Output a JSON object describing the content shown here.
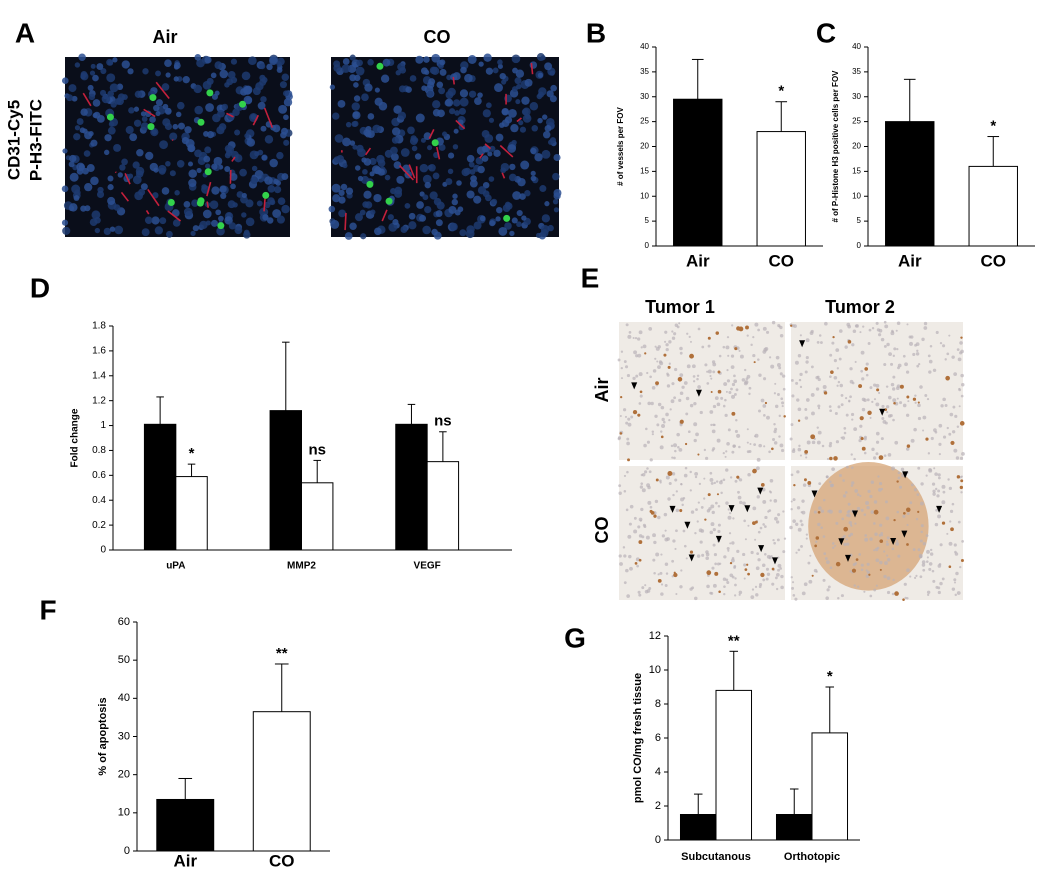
{
  "image_panels": [
    {
      "label": "A",
      "columns": [
        "Air",
        "CO"
      ],
      "rows": [
        "CD31-Cy5",
        "P-H3-FITC"
      ]
    },
    {
      "label": "E",
      "columns": [
        "Tumor 1",
        "Tumor 2"
      ],
      "rows": [
        "Air",
        "CO"
      ]
    }
  ],
  "chart_data": [
    {
      "type": "bar",
      "panel": "B",
      "ylabel": "# of vessels per FOV",
      "categories": [
        "Air",
        "CO"
      ],
      "values": [
        29.5,
        23
      ],
      "errors": [
        8,
        6
      ],
      "colors": [
        "#000000",
        "#ffffff"
      ],
      "annotations": [
        null,
        "*"
      ],
      "ylim": [
        0,
        40
      ],
      "yticks": [
        0,
        5,
        10,
        15,
        20,
        25,
        30,
        35,
        40
      ]
    },
    {
      "type": "bar",
      "panel": "C",
      "ylabel": "# of P-Histone H3 positive cells per FOV",
      "categories": [
        "Air",
        "CO"
      ],
      "values": [
        25,
        16
      ],
      "errors": [
        8.5,
        6
      ],
      "colors": [
        "#000000",
        "#ffffff"
      ],
      "annotations": [
        null,
        "*"
      ],
      "ylim": [
        0,
        40
      ],
      "yticks": [
        0,
        5,
        10,
        15,
        20,
        25,
        30,
        35,
        40
      ]
    },
    {
      "type": "bar",
      "panel": "D",
      "ylabel": "Fold change",
      "categories": [
        "uPA",
        "MMP2",
        "VEGF"
      ],
      "series": [
        {
          "color": "#000000",
          "values": [
            1.01,
            1.12,
            1.01
          ],
          "errors": [
            0.22,
            0.55,
            0.16
          ],
          "annotations": [
            null,
            null,
            null
          ]
        },
        {
          "color": "#ffffff",
          "values": [
            0.59,
            0.54,
            0.71
          ],
          "errors": [
            0.1,
            0.18,
            0.24
          ],
          "annotations": [
            "*",
            "ns",
            "ns"
          ]
        }
      ],
      "ylim": [
        0,
        1.8
      ],
      "yticks": [
        0,
        0.2,
        0.4,
        0.6,
        0.8,
        1,
        1.2,
        1.4,
        1.6,
        1.8
      ]
    },
    {
      "type": "bar",
      "panel": "F",
      "ylabel": "% of apoptosis",
      "categories": [
        "Air",
        "CO"
      ],
      "values": [
        13.5,
        36.5
      ],
      "errors": [
        5.5,
        12.5
      ],
      "colors": [
        "#000000",
        "#ffffff"
      ],
      "annotations": [
        null,
        "**"
      ],
      "ylim": [
        0,
        60
      ],
      "yticks": [
        0,
        10,
        20,
        30,
        40,
        50,
        60
      ]
    },
    {
      "type": "bar",
      "panel": "G",
      "ylabel": "pmol CO/mg fresh tissue",
      "categories": [
        "Subcutanous",
        "Orthotopic"
      ],
      "series": [
        {
          "color": "#000000",
          "values": [
            1.5,
            1.5
          ],
          "errors": [
            1.2,
            1.5
          ],
          "annotations": [
            null,
            null
          ]
        },
        {
          "color": "#ffffff",
          "values": [
            8.8,
            6.3
          ],
          "errors": [
            2.3,
            2.7
          ],
          "annotations": [
            "**",
            "*"
          ]
        }
      ],
      "ylim": [
        0,
        12
      ],
      "yticks": [
        0,
        2,
        4,
        6,
        8,
        10,
        12
      ]
    }
  ]
}
